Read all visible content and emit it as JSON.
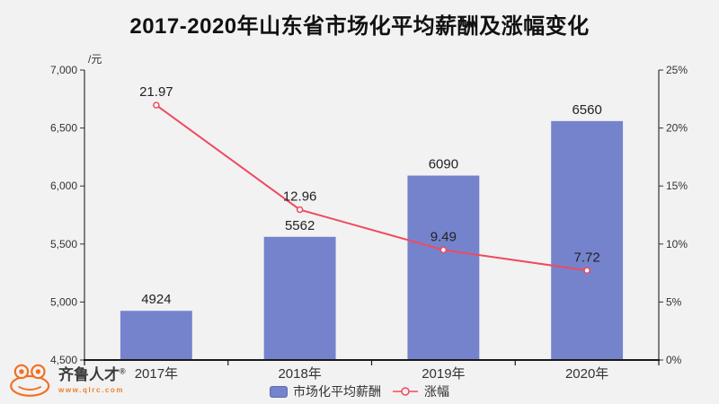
{
  "page": {
    "background": "#f2f2f2"
  },
  "title": "2017-2020年山东省市场化平均薪酬及涨幅变化",
  "logo": {
    "name": "齐鲁人才",
    "reg": "®",
    "url": "www.qlrc.com",
    "accent": "#f26f21"
  },
  "chart_data": {
    "type": "bar",
    "subtype": "bar+line dual-axis",
    "categories": [
      "2017年",
      "2018年",
      "2019年",
      "2020年"
    ],
    "series": [
      {
        "name": "市场化平均薪酬",
        "type": "bar",
        "axis": "left",
        "values": [
          4924,
          5562,
          6090,
          6560
        ],
        "color": "#7583cd"
      },
      {
        "name": "涨幅",
        "type": "line",
        "axis": "right",
        "values": [
          21.97,
          12.96,
          9.49,
          7.72
        ],
        "color": "#ef4a5f"
      }
    ],
    "left_axis": {
      "unit": "/元",
      "min": 4500,
      "max": 7000,
      "step": 500,
      "ticks": [
        "7,000",
        "6,500",
        "6,000",
        "5,500",
        "5,000",
        "4,500"
      ]
    },
    "right_axis": {
      "min": 0,
      "max": 25,
      "step": 5,
      "ticks": [
        "25%",
        "20%",
        "15%",
        "10%",
        "5%",
        "0%"
      ]
    },
    "grid": false,
    "legend_position": "bottom",
    "legend": [
      {
        "label": "市场化平均薪酬",
        "type": "bar"
      },
      {
        "label": "涨幅",
        "type": "line"
      }
    ]
  }
}
